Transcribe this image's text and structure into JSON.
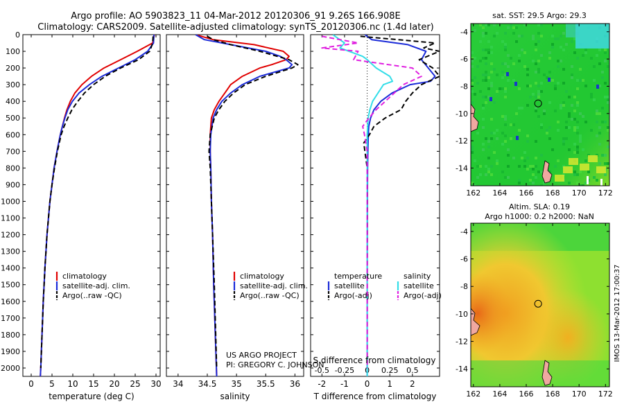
{
  "header": {
    "title_line1": "Argo profile: AO 5903823_11 04-Mar-2012 20120306_91 9.26S 166.908E",
    "title_line2": "Climatology: CARS2009. Satellite-adjusted climatology: synTS_20120306.nc (1.4d later)"
  },
  "colors": {
    "climatology": "#e00000",
    "satellite": "#1a2ad8",
    "argo": "#000000",
    "diff_satellite_t": "#1a2ad8",
    "diff_satellite_s": "#33dde8",
    "diff_argo_s": "#e020e0"
  },
  "chart_data": [
    {
      "type": "line",
      "name": "temperature-panel",
      "xlabel": "temperature (deg C)",
      "xlim": [
        -2,
        31
      ],
      "xticks": [
        0,
        5,
        10,
        15,
        20,
        25,
        30
      ],
      "ylim": [
        2050,
        0
      ],
      "yticks": [
        0,
        100,
        200,
        300,
        400,
        500,
        600,
        700,
        800,
        900,
        1000,
        1100,
        1200,
        1300,
        1400,
        1500,
        1600,
        1700,
        1800,
        1900,
        2000
      ],
      "legend": {
        "position": "bottom-center",
        "entries": [
          "climatology",
          "satellite-adj. clim.",
          "Argo(..raw -QC)"
        ]
      },
      "series": [
        {
          "name": "climatology",
          "color": "#e00000",
          "dash": false,
          "depth": [
            0,
            50,
            100,
            150,
            200,
            250,
            300,
            350,
            400,
            450,
            500,
            550,
            600,
            700,
            800,
            900,
            1000,
            1200,
            1400,
            1600,
            1800,
            2000,
            2050
          ],
          "values": [
            29.6,
            29.2,
            25.5,
            21.5,
            17.5,
            14.5,
            12.2,
            10.5,
            9.4,
            8.6,
            8.0,
            7.5,
            7.0,
            6.2,
            5.5,
            5.0,
            4.5,
            3.8,
            3.3,
            2.9,
            2.6,
            2.3,
            2.2
          ]
        },
        {
          "name": "satellite-adj. clim.",
          "color": "#1a2ad8",
          "dash": false,
          "depth": [
            0,
            50,
            100,
            150,
            200,
            250,
            300,
            350,
            400,
            450,
            500,
            550,
            600,
            700,
            800,
            900,
            1000,
            1200,
            1400,
            1600,
            1800,
            2000,
            2050
          ],
          "values": [
            29.5,
            29.4,
            28.0,
            25.0,
            21.0,
            17.0,
            14.0,
            11.5,
            9.9,
            8.8,
            8.1,
            7.5,
            7.0,
            6.2,
            5.5,
            5.0,
            4.5,
            3.8,
            3.3,
            2.9,
            2.6,
            2.3,
            2.2
          ]
        },
        {
          "name": "Argo(..raw -QC)",
          "color": "#000000",
          "dash": true,
          "depth": [
            10,
            50,
            100,
            150,
            200,
            250,
            300,
            350,
            400,
            450,
            500,
            550,
            600,
            700,
            800,
            900,
            1000,
            1200,
            1400,
            1600,
            1800,
            2000
          ],
          "values": [
            29.3,
            29.2,
            28.5,
            25.8,
            21.5,
            17.8,
            15.0,
            12.8,
            11.2,
            9.8,
            8.8,
            7.9,
            7.2,
            6.3,
            5.6,
            5.0,
            4.5,
            3.8,
            3.3,
            2.9,
            2.6,
            2.3
          ]
        }
      ]
    },
    {
      "type": "line",
      "name": "salinity-panel",
      "xlabel": "salinity",
      "xlim": [
        33.8,
        36.15
      ],
      "xticks": [
        34,
        34.5,
        35,
        35.5,
        36
      ],
      "ylim": [
        2050,
        0
      ],
      "legend": {
        "position": "bottom-center",
        "entries": [
          "climatology",
          "satellite-adj. clim.",
          "Argo(..raw -QC)"
        ]
      },
      "annotation": {
        "line1": "US ARGO PROJECT",
        "line2": "PI: GREGORY C. JOHNSON"
      },
      "series": [
        {
          "name": "climatology",
          "color": "#e00000",
          "dash": false,
          "depth": [
            0,
            30,
            60,
            100,
            130,
            150,
            180,
            200,
            250,
            300,
            350,
            400,
            450,
            500,
            600,
            700,
            800,
            1000,
            1200,
            1500,
            2050
          ],
          "values": [
            34.3,
            34.6,
            35.3,
            35.8,
            35.9,
            35.85,
            35.6,
            35.4,
            35.1,
            34.9,
            34.8,
            34.7,
            34.62,
            34.57,
            34.55,
            34.55,
            34.56,
            34.57,
            34.59,
            34.61,
            34.66
          ]
        },
        {
          "name": "satellite-adj. clim.",
          "color": "#1a2ad8",
          "dash": false,
          "depth": [
            0,
            30,
            60,
            100,
            130,
            150,
            180,
            200,
            250,
            300,
            350,
            400,
            450,
            500,
            600,
            700,
            800,
            1000,
            1200,
            1500,
            2050
          ],
          "values": [
            34.3,
            34.45,
            34.9,
            35.5,
            35.75,
            35.85,
            35.95,
            35.9,
            35.4,
            35.1,
            34.9,
            34.75,
            34.66,
            34.6,
            34.56,
            34.55,
            34.56,
            34.57,
            34.59,
            34.61,
            34.66
          ]
        },
        {
          "name": "Argo(..raw -QC)",
          "color": "#000000",
          "dash": true,
          "depth": [
            10,
            30,
            60,
            100,
            130,
            150,
            180,
            200,
            250,
            300,
            350,
            400,
            450,
            500,
            600,
            700,
            800,
            1000,
            1200,
            1500,
            2000
          ],
          "values": [
            34.5,
            34.6,
            34.9,
            35.4,
            35.7,
            35.9,
            36.05,
            35.95,
            35.5,
            35.15,
            34.95,
            34.8,
            34.7,
            34.62,
            34.55,
            34.53,
            34.55,
            34.57,
            34.59,
            34.62,
            34.66
          ]
        }
      ]
    },
    {
      "type": "line",
      "name": "difference-panel",
      "xlabel": "T difference from climatology",
      "xlabel_top": "S difference from climatology",
      "xlim": [
        -2.5,
        3.2
      ],
      "xticks": [
        -2,
        -1,
        0,
        1,
        2
      ],
      "xticks_s": [
        -0.5,
        -0.25,
        0,
        0.25,
        0.5
      ],
      "ylim": [
        2050,
        0
      ],
      "legend": {
        "position": "bottom-center",
        "temperature_title": "temperature",
        "salinity_title": "salinity",
        "entries": [
          "satellite",
          "Argo(-adj)",
          "satellite",
          "Argo(-adj)"
        ]
      },
      "series": [
        {
          "name": "temperature satellite",
          "color": "#1a2ad8",
          "dash": false,
          "depth": [
            0,
            30,
            60,
            100,
            150,
            200,
            250,
            280,
            300,
            350,
            400,
            450,
            500,
            550,
            600,
            700,
            800,
            1000,
            1500,
            2050
          ],
          "values": [
            -0.1,
            0.2,
            1.8,
            2.6,
            2.4,
            2.7,
            3.0,
            2.8,
            1.9,
            1.1,
            0.6,
            0.3,
            0.15,
            0.07,
            0.05,
            0.03,
            0.02,
            0.01,
            0.0,
            0.0
          ]
        },
        {
          "name": "temperature Argo(-adj)",
          "color": "#000000",
          "dash": true,
          "depth": [
            10,
            50,
            80,
            100,
            150,
            200,
            250,
            300,
            350,
            400,
            450,
            500,
            550,
            600,
            650,
            700,
            800,
            1000,
            1500,
            2000
          ],
          "values": [
            -0.3,
            3.0,
            2.5,
            3.2,
            2.3,
            2.9,
            3.2,
            2.4,
            2.0,
            1.7,
            1.5,
            0.8,
            0.3,
            0.1,
            -0.15,
            -0.1,
            0.0,
            0.01,
            0.0,
            0.0
          ]
        },
        {
          "name": "salinity satellite",
          "color": "#33dde8",
          "dash": false,
          "depth": [
            0,
            50,
            80,
            100,
            130,
            150,
            200,
            250,
            280,
            300,
            350,
            400,
            450,
            500,
            600,
            800,
            1000,
            1500,
            2050
          ],
          "values": [
            -0.38,
            -0.25,
            -0.3,
            -0.2,
            -0.05,
            0.0,
            0.1,
            0.25,
            0.28,
            0.18,
            0.12,
            0.06,
            0.03,
            0.01,
            0.0,
            0.0,
            0.0,
            0.0,
            0.0
          ]
        },
        {
          "name": "salinity Argo(-adj)",
          "color": "#e020e0",
          "dash": true,
          "depth": [
            10,
            50,
            80,
            100,
            150,
            200,
            250,
            300,
            350,
            400,
            450,
            500,
            550,
            600,
            700,
            1000,
            1500,
            2000
          ],
          "values": [
            -0.5,
            -0.1,
            -0.5,
            -0.1,
            -0.15,
            0.5,
            0.6,
            0.4,
            0.3,
            0.2,
            0.1,
            0.02,
            -0.05,
            -0.03,
            0.0,
            0.0,
            0.0,
            0.0
          ]
        }
      ]
    },
    {
      "type": "heatmap",
      "name": "sst-map",
      "title": "sat. SST: 29.5 Argo: 29.3",
      "xticks": [
        162,
        164,
        166,
        168,
        170,
        172
      ],
      "yticks": [
        -4,
        -6,
        -8,
        -10,
        -12,
        -14
      ],
      "xlim": [
        161.8,
        172.3
      ],
      "ylim": [
        -15.3,
        -3.4
      ],
      "profile_marker": {
        "lon": 166.9,
        "lat": -9.26
      }
    },
    {
      "type": "heatmap",
      "name": "sla-map",
      "title_line1": "Altim. SLA: 0.19",
      "title_line2": "Argo h1000: 0.2 h2000: NaN",
      "xticks": [
        162,
        164,
        166,
        168,
        170,
        172
      ],
      "yticks": [
        -4,
        -6,
        -8,
        -10,
        -12,
        -14
      ],
      "xlim": [
        161.8,
        172.3
      ],
      "ylim": [
        -15.3,
        -3.4
      ],
      "profile_marker": {
        "lon": 166.9,
        "lat": -9.26
      }
    }
  ],
  "side_credit": "IMOS 13-Mar-2012 17:00:37"
}
